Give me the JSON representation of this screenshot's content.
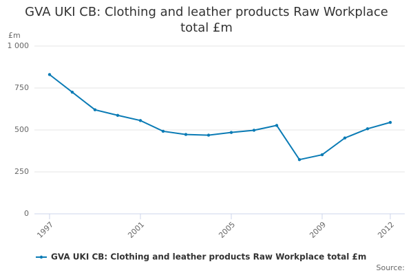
{
  "chart_data": {
    "type": "line",
    "title": "GVA UKI CB: Clothing and leather products Raw Workplace total £m",
    "y_label": "£m",
    "source": "Source:",
    "x": [
      1997,
      1998,
      1999,
      2000,
      2001,
      2002,
      2003,
      2004,
      2005,
      2006,
      2007,
      2008,
      2009,
      2010,
      2011,
      2012
    ],
    "series": [
      {
        "name": "GVA UKI CB: Clothing and leather products Raw Workplace total £m",
        "color": "#0a7bb5",
        "values": [
          830,
          725,
          620,
          587,
          556,
          492,
          473,
          469,
          485,
          498,
          527,
          323,
          352,
          452,
          507,
          545
        ]
      }
    ],
    "xlim": [
      1997,
      2012
    ],
    "xticks": [
      1997,
      2001,
      2005,
      2009,
      2012
    ],
    "ylim": [
      0,
      1000
    ],
    "yticks": [
      0,
      250,
      500,
      750,
      {
        "value": 1000,
        "label": "1 000"
      }
    ],
    "grid": true
  }
}
